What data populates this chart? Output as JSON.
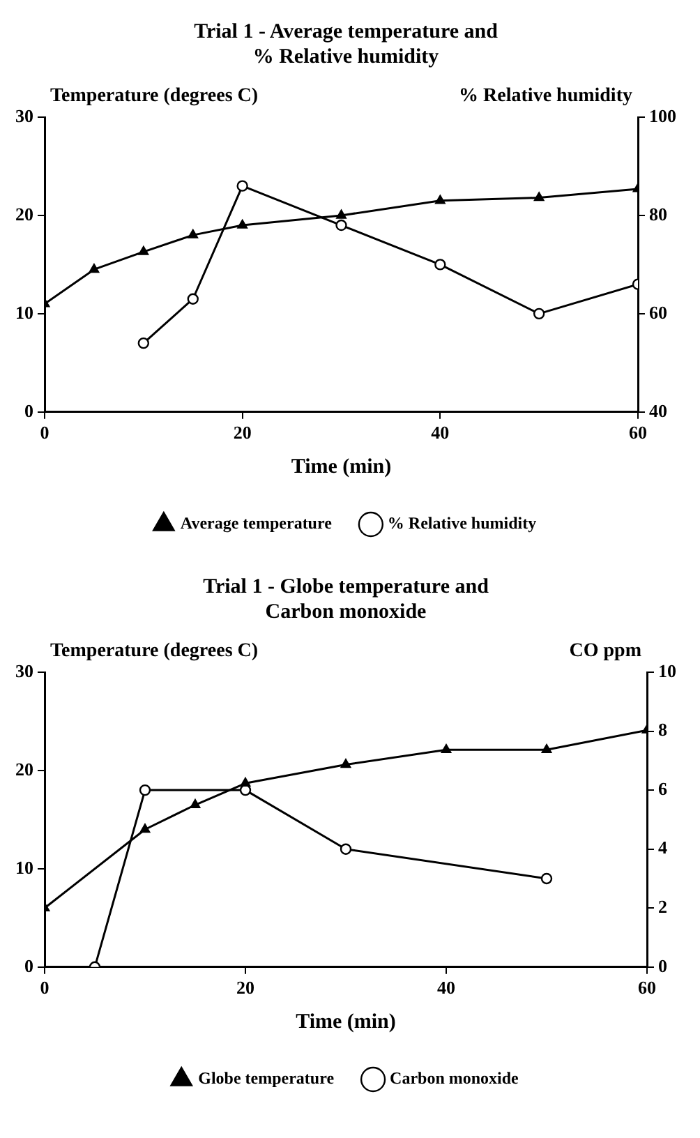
{
  "chart_data": [
    {
      "type": "line",
      "title": "Trial 1 - Average temperature and\n% Relative humidity",
      "xlabel": "Time (min)",
      "ylabel": "Temperature (degrees C)",
      "y2label": "% Relative humidity",
      "series": [
        {
          "name": "Average temperature",
          "color": "#000000",
          "marker": "triangle",
          "x": [
            0,
            5,
            10,
            15,
            20,
            30,
            40,
            50,
            60
          ],
          "values": [
            11,
            14.5,
            16.3,
            18,
            19,
            20,
            21.5,
            21.8,
            22.7
          ]
        },
        {
          "name": "% Relative humidity",
          "color": "#000000",
          "marker": "circle",
          "axis": "y2",
          "x": [
            10,
            15,
            20,
            30,
            40,
            50,
            60
          ],
          "values": [
            54,
            63,
            86,
            78,
            70,
            60,
            66
          ]
        }
      ],
      "xlim": [
        0,
        60
      ],
      "xticks": [
        0,
        20,
        40,
        60
      ],
      "ylim": [
        0,
        30
      ],
      "yticks": [
        0,
        10,
        20,
        30
      ],
      "y2lim": [
        40,
        100
      ],
      "y2ticks": [
        40,
        60,
        80,
        100
      ],
      "grid": false,
      "legend": "bottom"
    },
    {
      "type": "line",
      "title": "Trial 1 - Globe temperature and\nCarbon monoxide",
      "xlabel": "Time (min)",
      "ylabel": "Temperature (degrees C)",
      "y2label": "CO ppm",
      "series": [
        {
          "name": "Globe temperature",
          "color": "#000000",
          "marker": "triangle",
          "x": [
            0,
            10,
            15,
            20,
            30,
            40,
            50,
            60
          ],
          "values": [
            6,
            14,
            16.5,
            18.7,
            20.6,
            22.1,
            22.1,
            24.1
          ]
        },
        {
          "name": "Carbon monoxide",
          "color": "#000000",
          "marker": "circle",
          "axis": "y2",
          "x": [
            5,
            10,
            20,
            30,
            50
          ],
          "values": [
            0,
            6,
            6,
            4,
            3
          ]
        }
      ],
      "xlim": [
        0,
        60
      ],
      "xticks": [
        0,
        20,
        40,
        60
      ],
      "ylim": [
        0,
        30
      ],
      "yticks": [
        0,
        10,
        20,
        30
      ],
      "y2lim": [
        0,
        10
      ],
      "y2ticks": [
        0,
        2,
        4,
        6,
        8,
        10
      ],
      "grid": false,
      "legend": "bottom"
    }
  ]
}
